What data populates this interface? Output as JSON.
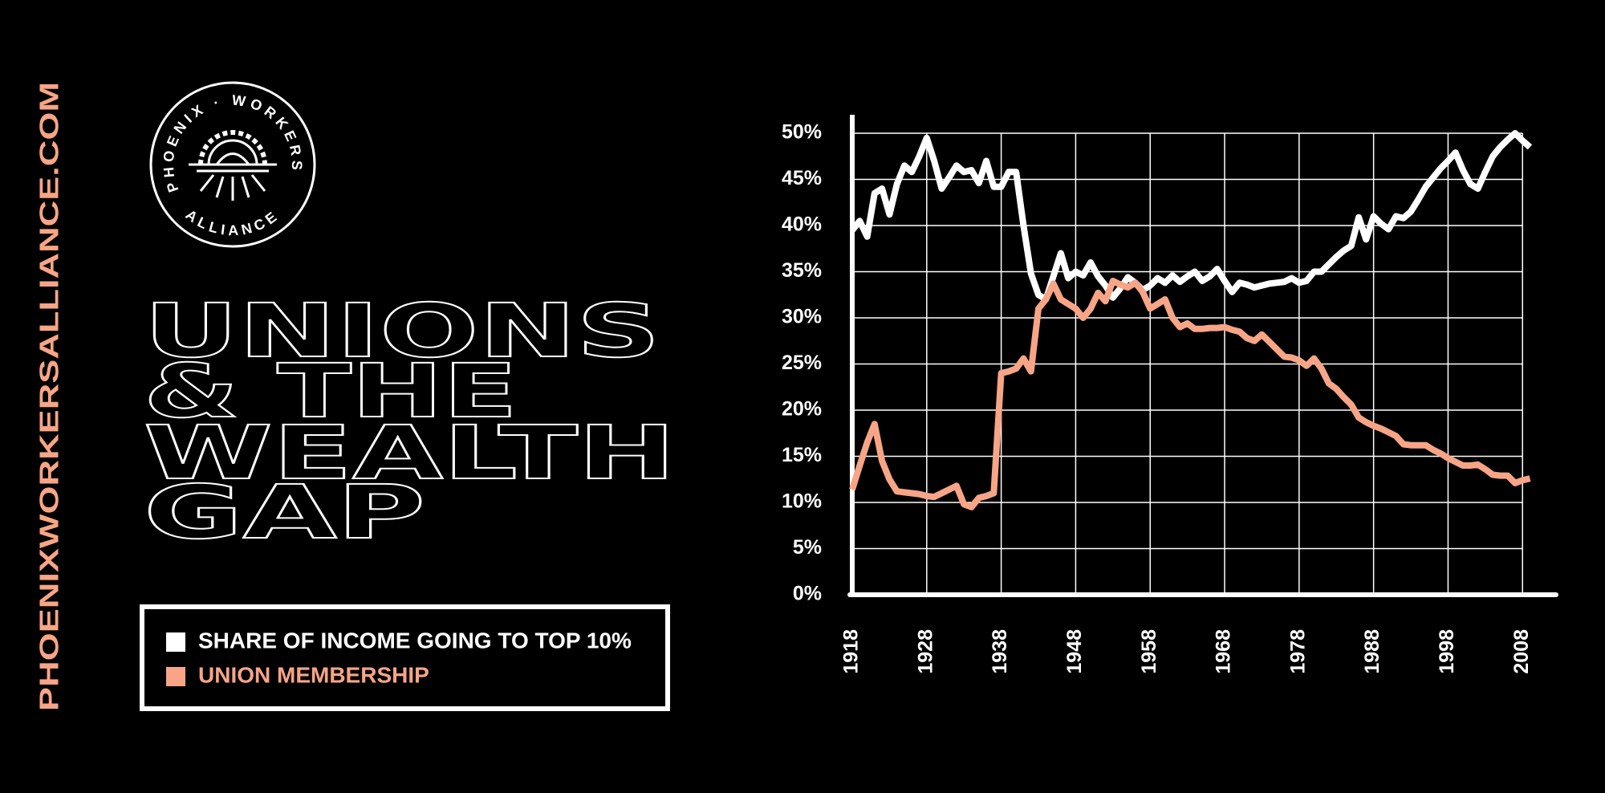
{
  "site": "PHOENIXWORKERSALLIANCE.COM",
  "logo": {
    "top": "PHOENIX · WORKERS ·",
    "bottom": "ALLIANCE"
  },
  "chart_data": {
    "type": "line",
    "title": [
      "UNIONS",
      "& THE",
      "WEALTH",
      "GAP"
    ],
    "x": [
      1918,
      1919,
      1920,
      1921,
      1922,
      1923,
      1924,
      1925,
      1926,
      1927,
      1928,
      1929,
      1930,
      1931,
      1932,
      1933,
      1934,
      1935,
      1936,
      1937,
      1938,
      1939,
      1940,
      1941,
      1942,
      1943,
      1944,
      1945,
      1946,
      1947,
      1948,
      1949,
      1950,
      1951,
      1952,
      1953,
      1954,
      1955,
      1956,
      1957,
      1958,
      1959,
      1960,
      1961,
      1962,
      1963,
      1964,
      1965,
      1966,
      1967,
      1968,
      1969,
      1970,
      1971,
      1972,
      1973,
      1974,
      1975,
      1976,
      1977,
      1978,
      1979,
      1980,
      1981,
      1982,
      1983,
      1984,
      1985,
      1986,
      1987,
      1988,
      1989,
      1990,
      1991,
      1992,
      1993,
      1994,
      1995,
      1996,
      1997,
      1998,
      1999,
      2000,
      2001,
      2002,
      2003,
      2004,
      2005,
      2006,
      2007,
      2008,
      2009
    ],
    "series": [
      {
        "name": "SHARE OF INCOME GOING TO TOP 10%",
        "color": "#ffffff",
        "values": [
          39.5,
          40.5,
          38.8,
          43.5,
          44,
          41.2,
          44.5,
          46.5,
          45.8,
          47.5,
          49.5,
          47,
          44,
          45.2,
          46.5,
          45.8,
          46,
          44.6,
          47,
          44.2,
          44.2,
          45.8,
          45.8,
          40,
          34.8,
          32.5,
          32,
          34.5,
          37,
          34.3,
          35,
          34.6,
          36,
          34.5,
          33.5,
          32.2,
          33.2,
          34.4,
          33.8,
          33,
          33.5,
          34.3,
          33.8,
          34.6,
          33.9,
          34.5,
          35,
          34,
          34.5,
          35.3,
          34,
          32.8,
          33.8,
          33.6,
          33.3,
          33.5,
          33.7,
          33.8,
          33.9,
          34.3,
          33.8,
          34,
          35,
          35,
          35.8,
          36.6,
          37.3,
          37.8,
          40.9,
          38.5,
          41,
          40.2,
          39.6,
          41,
          40.8,
          41.5,
          42.8,
          44.2,
          45.2,
          46.2,
          47,
          47.9,
          46,
          44.5,
          44,
          45.8,
          47.5,
          48.5,
          49.3,
          50,
          49.2,
          48.5
        ]
      },
      {
        "name": "UNION MEMBERSHIP",
        "color": "#f7a586",
        "values": [
          11.4,
          14,
          16.5,
          18.5,
          14.5,
          12.5,
          11.2,
          11.1,
          11,
          10.9,
          10.7,
          10.6,
          11,
          11.4,
          11.8,
          9.8,
          9.5,
          10.5,
          10.7,
          11,
          24,
          24.2,
          24.5,
          25.6,
          24.2,
          31,
          32,
          33.7,
          32,
          31.5,
          31,
          30,
          31,
          32.7,
          31.8,
          34,
          33.6,
          33.3,
          33.8,
          32.8,
          31,
          31.5,
          32,
          30,
          29,
          29.4,
          28.8,
          28.8,
          28.9,
          28.9,
          29,
          28.7,
          28.5,
          27.8,
          27.5,
          28.2,
          27.4,
          26.6,
          25.8,
          25.7,
          25.4,
          24.8,
          25.6,
          24.5,
          22.9,
          22.3,
          21.4,
          20.6,
          19.2,
          18.7,
          18.3,
          18,
          17.6,
          17.2,
          16.3,
          16.2,
          16.2,
          16.2,
          15.7,
          15.3,
          14.8,
          14.4,
          14,
          14,
          14.1,
          13.6,
          13,
          12.9,
          12.9,
          12.1,
          12.4,
          12.6
        ]
      }
    ],
    "xlim": [
      1918,
      2012.5
    ],
    "xticks": [
      1918,
      1928,
      1938,
      1948,
      1958,
      1968,
      1978,
      1988,
      1998,
      2008
    ],
    "ylim": [
      0,
      52
    ],
    "yticks": [
      {
        "value": 0,
        "label": "0%"
      },
      {
        "value": 5,
        "label": "5%"
      },
      {
        "value": 10,
        "label": "10%"
      },
      {
        "value": 15,
        "label": "15%"
      },
      {
        "value": 20,
        "label": "20%"
      },
      {
        "value": 25,
        "label": "25%"
      },
      {
        "value": 30,
        "label": "30%"
      },
      {
        "value": 35,
        "label": "35%"
      },
      {
        "value": 40,
        "label": "40%"
      },
      {
        "value": 45,
        "label": "45%"
      },
      {
        "value": 50,
        "label": "50%"
      }
    ],
    "grid": true
  }
}
